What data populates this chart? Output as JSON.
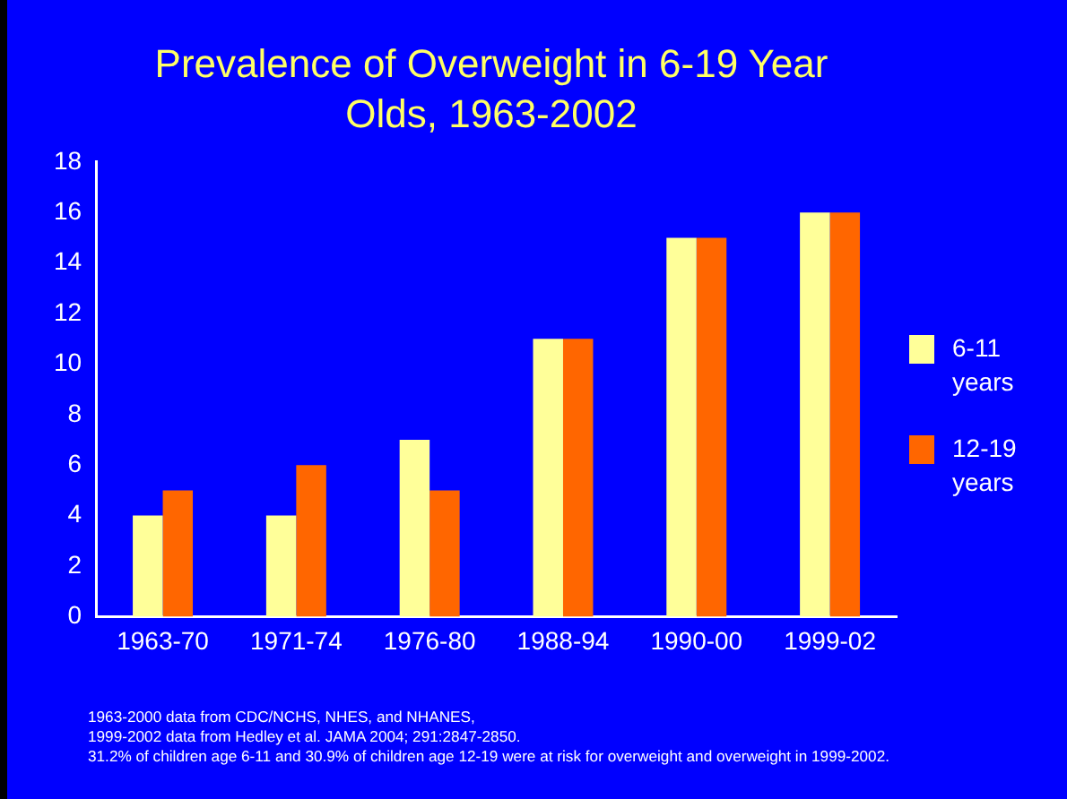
{
  "chart_data": {
    "type": "bar",
    "title": "Prevalence of Overweight in 6-19 Year Olds, 1963-2002",
    "categories": [
      "1963-70",
      "1971-74",
      "1976-80",
      "1988-94",
      "1990-00",
      "1999-02"
    ],
    "series": [
      {
        "name": "6-11 years",
        "color": "#ffff99",
        "values": [
          4,
          4,
          7,
          11,
          15,
          16
        ]
      },
      {
        "name": "12-19 years",
        "color": "#ff6600",
        "values": [
          5,
          6,
          5,
          11,
          15,
          16
        ]
      }
    ],
    "ylim": [
      0,
      18
    ],
    "yticks": [
      0,
      2,
      4,
      6,
      8,
      10,
      12,
      14,
      16,
      18
    ],
    "grid": false,
    "legend": "right",
    "annotations": [
      "1963-2000 data from CDC/NCHS, NHES, and NHANES,",
      "1999-2002 data from Hedley et al. JAMA 2004; 291:2847-2850.",
      "31.2% of children age 6-11 and 30.9% of children age 12-19 were at risk for overweight and overweight in 1999-2002."
    ]
  }
}
